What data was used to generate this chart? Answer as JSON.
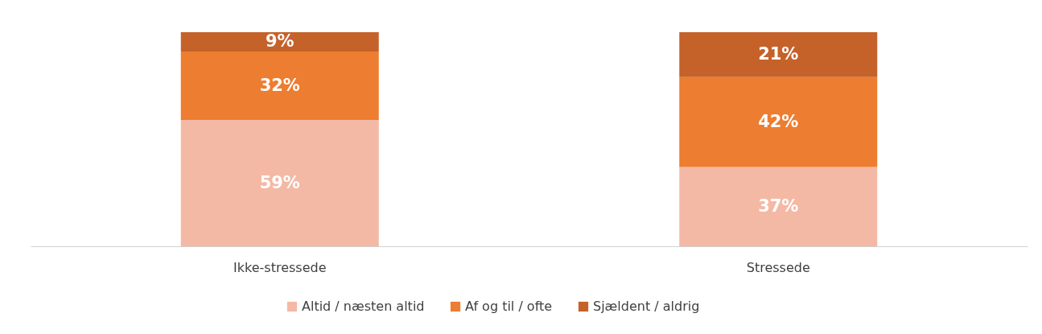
{
  "chart_data": {
    "type": "bar",
    "stacked": true,
    "categories": [
      "Ikke-stressede",
      "Stressede"
    ],
    "series": [
      {
        "name": "Altid / næsten altid",
        "color": "#f4b9a5",
        "values": [
          59,
          37
        ],
        "value_labels": [
          "59%",
          "37%"
        ]
      },
      {
        "name": "Af og til / ofte",
        "color": "#ed7d31",
        "values": [
          32,
          42
        ],
        "value_labels": [
          "32%",
          "42%"
        ]
      },
      {
        "name": "Sjældent / aldrig",
        "color": "#c5622a",
        "values": [
          9,
          21
        ],
        "value_labels": [
          "9%",
          "21%"
        ]
      }
    ],
    "ylim": [
      0,
      100
    ],
    "legend": "bottom",
    "tick_labels": "x"
  }
}
